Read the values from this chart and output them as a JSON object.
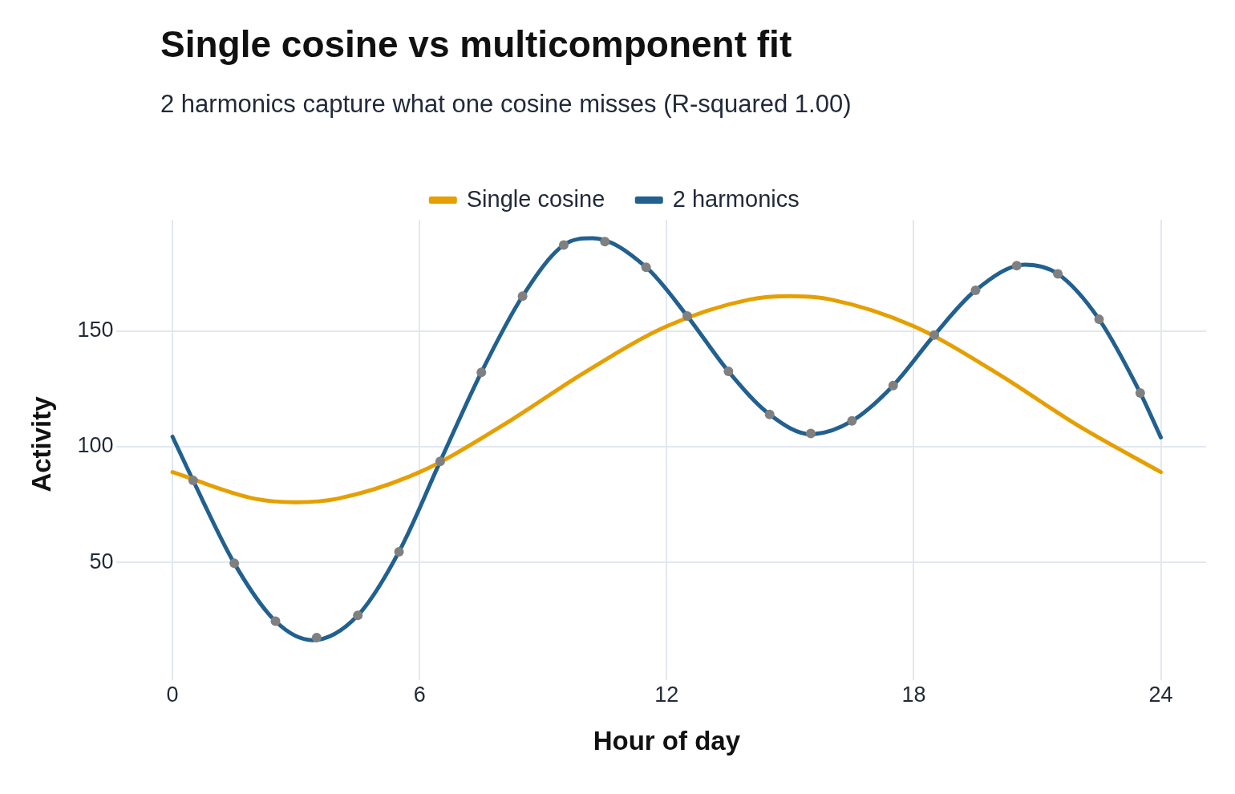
{
  "chart_data": {
    "type": "line",
    "title": "Single cosine vs multicomponent fit",
    "subtitle": "2 harmonics capture what one cosine misses (R-squared 1.00)",
    "xlabel": "Hour of day",
    "ylabel": "Activity",
    "xlim": [
      -1.1,
      25.1
    ],
    "ylim": [
      4,
      198
    ],
    "xticks": [
      0,
      6,
      12,
      18,
      24
    ],
    "yticks": [
      50,
      100,
      150
    ],
    "grid": true,
    "legend": "top",
    "marker": "none",
    "line_style": "solid",
    "series": [
      {
        "type": "scatter",
        "color": "#808080",
        "marker": "circle",
        "x": [
          0.5,
          1.5,
          2.5,
          3.5,
          4.5,
          5.5,
          6.5,
          7.5,
          8.5,
          9.5,
          10.5,
          11.5,
          12.5,
          13.5,
          14.5,
          15.5,
          16.5,
          17.5,
          18.5,
          19.5,
          20.5,
          21.5,
          22.5,
          23.5
        ],
        "values": [
          85.4,
          49.6,
          24.6,
          17.5,
          27.1,
          54.6,
          93.6,
          132.1,
          165,
          187.1,
          188.6,
          177.5,
          156.4,
          132.5,
          113.9,
          105.7,
          111.1,
          126.4,
          148.2,
          167.5,
          178.2,
          174.6,
          155,
          123.2
        ]
      },
      {
        "name": "Single cosine",
        "color": "#e69f00",
        "x": [
          0,
          2,
          3,
          4,
          6,
          8,
          10,
          12,
          14,
          15,
          16,
          18,
          20,
          22,
          24
        ],
        "values": [
          89,
          77.5,
          76,
          77.5,
          89,
          109,
          132,
          152,
          163.5,
          165,
          163.5,
          152,
          132,
          109,
          89
        ]
      },
      {
        "name": "2 harmonics",
        "color": "#21608f",
        "x": [
          0,
          0.5,
          1.5,
          2.5,
          3.4,
          4.5,
          5.5,
          6.5,
          7.5,
          8.5,
          9.5,
          10.2,
          11.5,
          12.5,
          13.5,
          14.5,
          15.5,
          16.5,
          17.5,
          18.5,
          19.5,
          20.7,
          21.5,
          22.5,
          23.5,
          24
        ],
        "values": [
          104.3,
          85.4,
          49.6,
          24.6,
          16.4,
          27.1,
          54.6,
          93.6,
          132.1,
          165,
          187.1,
          190,
          177.5,
          156.4,
          132.5,
          113.9,
          105.4,
          111.1,
          126.4,
          148.2,
          167.5,
          178.6,
          174.6,
          155,
          123.2,
          104
        ]
      }
    ]
  }
}
